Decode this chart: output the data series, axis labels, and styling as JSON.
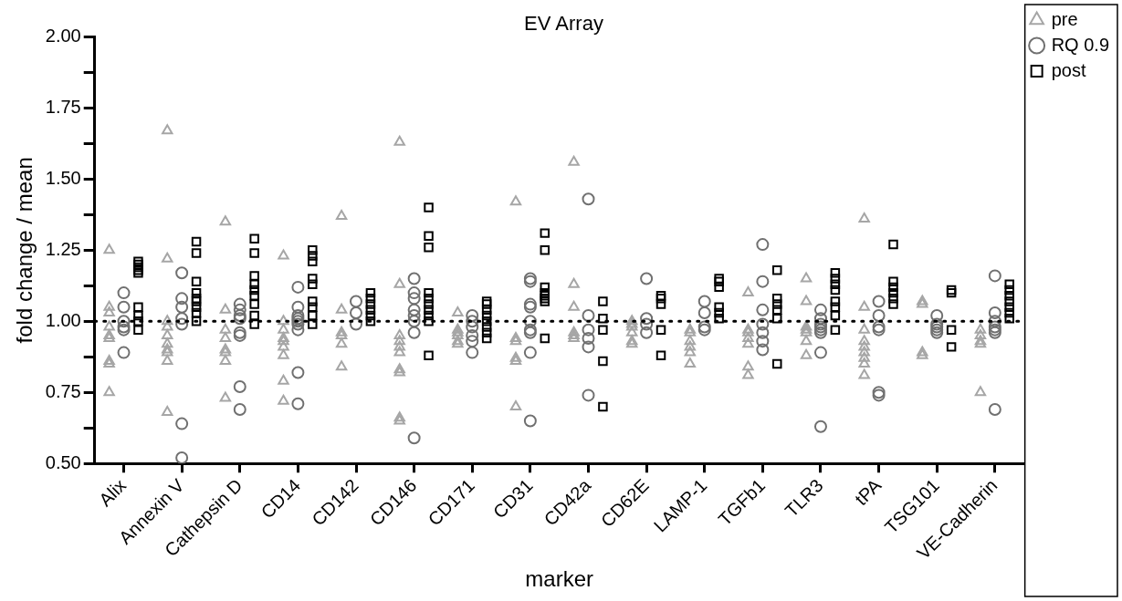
{
  "chart_data": {
    "type": "scatter",
    "title": "EV Array",
    "xlabel": "marker",
    "ylabel": "fold change / mean",
    "categories": [
      "Alix",
      "Annexin V",
      "Cathepsin D",
      "CD14",
      "CD142",
      "CD146",
      "CD171",
      "CD31",
      "CD42a",
      "CD62E",
      "LAMP-1",
      "TGFb1",
      "TLR3",
      "tPA",
      "TSG101",
      "VE-Cadherin"
    ],
    "ylim": [
      0.5,
      2.0
    ],
    "yticks": [
      {
        "value": 0.5,
        "label": "0.50"
      },
      {
        "value": 0.625,
        "label": null
      },
      {
        "value": 0.75,
        "label": "0.75"
      },
      {
        "value": 0.875,
        "label": null
      },
      {
        "value": 1.0,
        "label": "1.00"
      },
      {
        "value": 1.125,
        "label": null
      },
      {
        "value": 1.25,
        "label": "1.25"
      },
      {
        "value": 1.375,
        "label": null
      },
      {
        "value": 1.5,
        "label": "1.50"
      },
      {
        "value": 1.625,
        "label": null
      },
      {
        "value": 1.75,
        "label": "1.75"
      },
      {
        "value": 1.875,
        "label": null
      },
      {
        "value": 2.0,
        "label": "2.00"
      }
    ],
    "grid": false,
    "legend": "top right",
    "ref_lines": [
      {
        "axis": "y",
        "value": 1.0,
        "color": "#000000",
        "line_style": "dotted"
      }
    ],
    "series": [
      {
        "name": "pre",
        "color": "#a6a6a6",
        "marker": "triangle",
        "x": [
          "Alix",
          "Alix",
          "Alix",
          "Alix",
          "Alix",
          "Alix",
          "Alix",
          "Alix",
          "Alix",
          "Annexin V",
          "Annexin V",
          "Annexin V",
          "Annexin V",
          "Annexin V",
          "Annexin V",
          "Annexin V",
          "Annexin V",
          "Annexin V",
          "Annexin V",
          "Cathepsin D",
          "Cathepsin D",
          "Cathepsin D",
          "Cathepsin D",
          "Cathepsin D",
          "Cathepsin D",
          "Cathepsin D",
          "Cathepsin D",
          "CD14",
          "CD14",
          "CD14",
          "CD14",
          "CD14",
          "CD14",
          "CD14",
          "CD14",
          "CD14",
          "CD142",
          "CD142",
          "CD142",
          "CD142",
          "CD142",
          "CD142",
          "CD146",
          "CD146",
          "CD146",
          "CD146",
          "CD146",
          "CD146",
          "CD146",
          "CD146",
          "CD146",
          "CD146",
          "CD171",
          "CD171",
          "CD171",
          "CD171",
          "CD171",
          "CD171",
          "CD31",
          "CD31",
          "CD31",
          "CD31",
          "CD31",
          "CD31",
          "CD42a",
          "CD42a",
          "CD42a",
          "CD42a",
          "CD42a",
          "CD42a",
          "CD62E",
          "CD62E",
          "CD62E",
          "CD62E",
          "CD62E",
          "CD62E",
          "LAMP-1",
          "LAMP-1",
          "LAMP-1",
          "LAMP-1",
          "LAMP-1",
          "LAMP-1",
          "TGFb1",
          "TGFb1",
          "TGFb1",
          "TGFb1",
          "TGFb1",
          "TGFb1",
          "TGFb1",
          "TLR3",
          "TLR3",
          "TLR3",
          "TLR3",
          "TLR3",
          "TLR3",
          "TLR3",
          "tPA",
          "tPA",
          "tPA",
          "tPA",
          "tPA",
          "tPA",
          "tPA",
          "tPA",
          "tPA",
          "TSG101",
          "TSG101",
          "TSG101",
          "TSG101",
          "VE-Cadherin",
          "VE-Cadherin",
          "VE-Cadherin",
          "VE-Cadherin",
          "VE-Cadherin"
        ],
        "values": [
          1.25,
          1.05,
          1.03,
          0.98,
          0.95,
          0.94,
          0.86,
          0.85,
          0.75,
          1.67,
          1.22,
          1.0,
          0.98,
          0.95,
          0.92,
          0.9,
          0.89,
          0.86,
          0.68,
          1.35,
          1.04,
          0.97,
          0.94,
          0.9,
          0.89,
          0.86,
          0.73,
          1.23,
          1.0,
          0.97,
          0.94,
          0.93,
          0.91,
          0.88,
          0.79,
          0.72,
          1.37,
          1.04,
          0.96,
          0.95,
          0.92,
          0.84,
          1.63,
          1.13,
          0.95,
          0.93,
          0.91,
          0.89,
          0.83,
          0.82,
          0.66,
          0.65,
          1.03,
          0.97,
          0.96,
          0.95,
          0.93,
          0.92,
          1.42,
          0.94,
          0.93,
          0.87,
          0.86,
          0.7,
          1.56,
          1.13,
          1.05,
          0.96,
          0.95,
          0.94,
          1.0,
          0.99,
          0.98,
          0.96,
          0.93,
          0.92,
          0.97,
          0.96,
          0.93,
          0.91,
          0.89,
          0.85,
          1.1,
          0.97,
          0.96,
          0.94,
          0.92,
          0.84,
          0.81,
          1.15,
          1.07,
          0.98,
          0.97,
          0.96,
          0.93,
          0.88,
          1.36,
          1.05,
          0.97,
          0.93,
          0.91,
          0.89,
          0.87,
          0.85,
          0.81,
          1.07,
          1.06,
          0.89,
          0.88,
          0.97,
          0.95,
          0.93,
          0.92,
          0.75
        ]
      },
      {
        "name": "RQ 0.9",
        "color": "#707070",
        "marker": "circle",
        "x": [
          "Alix",
          "Alix",
          "Alix",
          "Alix",
          "Alix",
          "Alix",
          "Annexin V",
          "Annexin V",
          "Annexin V",
          "Annexin V",
          "Annexin V",
          "Annexin V",
          "Annexin V",
          "Cathepsin D",
          "Cathepsin D",
          "Cathepsin D",
          "Cathepsin D",
          "Cathepsin D",
          "Cathepsin D",
          "Cathepsin D",
          "Cathepsin D",
          "CD14",
          "CD14",
          "CD14",
          "CD14",
          "CD14",
          "CD14",
          "CD14",
          "CD14",
          "CD14",
          "CD142",
          "CD142",
          "CD142",
          "CD146",
          "CD146",
          "CD146",
          "CD146",
          "CD146",
          "CD146",
          "CD146",
          "CD146",
          "CD171",
          "CD171",
          "CD171",
          "CD171",
          "CD171",
          "CD171",
          "CD31",
          "CD31",
          "CD31",
          "CD31",
          "CD31",
          "CD31",
          "CD31",
          "CD31",
          "CD31",
          "CD42a",
          "CD42a",
          "CD42a",
          "CD42a",
          "CD42a",
          "CD42a",
          "CD62E",
          "CD62E",
          "CD62E",
          "CD62E",
          "LAMP-1",
          "LAMP-1",
          "LAMP-1",
          "LAMP-1",
          "TGFb1",
          "TGFb1",
          "TGFb1",
          "TGFb1",
          "TGFb1",
          "TGFb1",
          "TGFb1",
          "TLR3",
          "TLR3",
          "TLR3",
          "TLR3",
          "TLR3",
          "TLR3",
          "TLR3",
          "TLR3",
          "tPA",
          "tPA",
          "tPA",
          "tPA",
          "tPA",
          "tPA",
          "TSG101",
          "TSG101",
          "TSG101",
          "TSG101",
          "TSG101",
          "VE-Cadherin",
          "VE-Cadherin",
          "VE-Cadherin",
          "VE-Cadherin",
          "VE-Cadherin",
          "VE-Cadherin",
          "VE-Cadherin"
        ],
        "values": [
          1.1,
          1.05,
          1.0,
          0.98,
          0.97,
          0.89,
          1.17,
          1.08,
          1.05,
          1.01,
          0.99,
          0.64,
          0.52,
          1.06,
          1.04,
          1.02,
          1.01,
          0.96,
          0.95,
          0.77,
          0.69,
          1.12,
          1.05,
          1.02,
          1.01,
          1.0,
          0.99,
          0.97,
          0.82,
          0.71,
          1.07,
          1.03,
          0.99,
          1.15,
          1.1,
          1.08,
          1.04,
          1.02,
          1.0,
          0.96,
          0.59,
          1.02,
          1.0,
          0.98,
          0.95,
          0.93,
          0.89,
          1.15,
          1.14,
          1.06,
          1.05,
          1.0,
          0.97,
          0.96,
          0.89,
          0.65,
          1.43,
          1.02,
          0.97,
          0.94,
          0.91,
          0.74,
          1.15,
          1.01,
          0.99,
          0.96,
          1.07,
          1.03,
          0.98,
          0.97,
          1.27,
          1.14,
          1.04,
          0.99,
          0.96,
          0.93,
          0.9,
          1.04,
          1.01,
          0.99,
          0.98,
          0.97,
          0.96,
          0.89,
          0.63,
          1.07,
          1.02,
          0.98,
          0.97,
          0.75,
          0.74,
          1.02,
          0.99,
          0.98,
          0.97,
          0.96,
          1.16,
          1.03,
          1.0,
          0.98,
          0.97,
          0.96,
          0.69
        ]
      },
      {
        "name": "post",
        "color": "#000000",
        "marker": "square",
        "x": [
          "Alix",
          "Alix",
          "Alix",
          "Alix",
          "Alix",
          "Alix",
          "Alix",
          "Alix",
          "Alix",
          "Annexin V",
          "Annexin V",
          "Annexin V",
          "Annexin V",
          "Annexin V",
          "Annexin V",
          "Annexin V",
          "Annexin V",
          "Annexin V",
          "Cathepsin D",
          "Cathepsin D",
          "Cathepsin D",
          "Cathepsin D",
          "Cathepsin D",
          "Cathepsin D",
          "Cathepsin D",
          "Cathepsin D",
          "Cathepsin D",
          "CD14",
          "CD14",
          "CD14",
          "CD14",
          "CD14",
          "CD14",
          "CD14",
          "CD14",
          "CD14",
          "CD142",
          "CD142",
          "CD142",
          "CD142",
          "CD142",
          "CD142",
          "CD146",
          "CD146",
          "CD146",
          "CD146",
          "CD146",
          "CD146",
          "CD146",
          "CD146",
          "CD146",
          "CD146",
          "CD171",
          "CD171",
          "CD171",
          "CD171",
          "CD171",
          "CD171",
          "CD171",
          "CD171",
          "CD31",
          "CD31",
          "CD31",
          "CD31",
          "CD31",
          "CD31",
          "CD31",
          "CD31",
          "CD42a",
          "CD42a",
          "CD42a",
          "CD42a",
          "CD42a",
          "CD62E",
          "CD62E",
          "CD62E",
          "CD62E",
          "CD62E",
          "LAMP-1",
          "LAMP-1",
          "LAMP-1",
          "LAMP-1",
          "LAMP-1",
          "LAMP-1",
          "TGFb1",
          "TGFb1",
          "TGFb1",
          "TGFb1",
          "TGFb1",
          "TGFb1",
          "TLR3",
          "TLR3",
          "TLR3",
          "TLR3",
          "TLR3",
          "TLR3",
          "TLR3",
          "TLR3",
          "tPA",
          "tPA",
          "tPA",
          "tPA",
          "tPA",
          "tPA",
          "TSG101",
          "TSG101",
          "TSG101",
          "TSG101",
          "VE-Cadherin",
          "VE-Cadherin",
          "VE-Cadherin",
          "VE-Cadherin",
          "VE-Cadherin",
          "VE-Cadherin",
          "VE-Cadherin"
        ],
        "values": [
          1.21,
          1.2,
          1.19,
          1.18,
          1.17,
          1.05,
          1.02,
          1.0,
          0.97,
          1.28,
          1.24,
          1.14,
          1.1,
          1.08,
          1.07,
          1.05,
          1.03,
          1.0,
          1.29,
          1.24,
          1.16,
          1.13,
          1.11,
          1.09,
          1.06,
          1.02,
          0.99,
          1.25,
          1.23,
          1.21,
          1.15,
          1.13,
          1.07,
          1.05,
          1.02,
          0.99,
          1.1,
          1.08,
          1.06,
          1.04,
          1.02,
          1.0,
          1.4,
          1.3,
          1.26,
          1.1,
          1.08,
          1.06,
          1.04,
          1.02,
          1.0,
          0.88,
          1.07,
          1.06,
          1.04,
          1.02,
          1.0,
          0.98,
          0.96,
          0.94,
          1.31,
          1.25,
          1.12,
          1.1,
          1.09,
          1.08,
          1.07,
          0.94,
          1.07,
          1.01,
          0.97,
          0.86,
          0.7,
          1.09,
          1.08,
          1.06,
          0.97,
          0.88,
          1.15,
          1.14,
          1.12,
          1.05,
          1.03,
          1.01,
          1.18,
          1.08,
          1.06,
          1.04,
          1.01,
          0.85,
          1.17,
          1.15,
          1.13,
          1.11,
          1.07,
          1.05,
          1.02,
          0.97,
          1.27,
          1.14,
          1.12,
          1.1,
          1.08,
          1.06,
          1.11,
          1.1,
          0.97,
          0.91,
          1.13,
          1.11,
          1.09,
          1.07,
          1.05,
          1.03,
          1.01
        ]
      }
    ]
  }
}
